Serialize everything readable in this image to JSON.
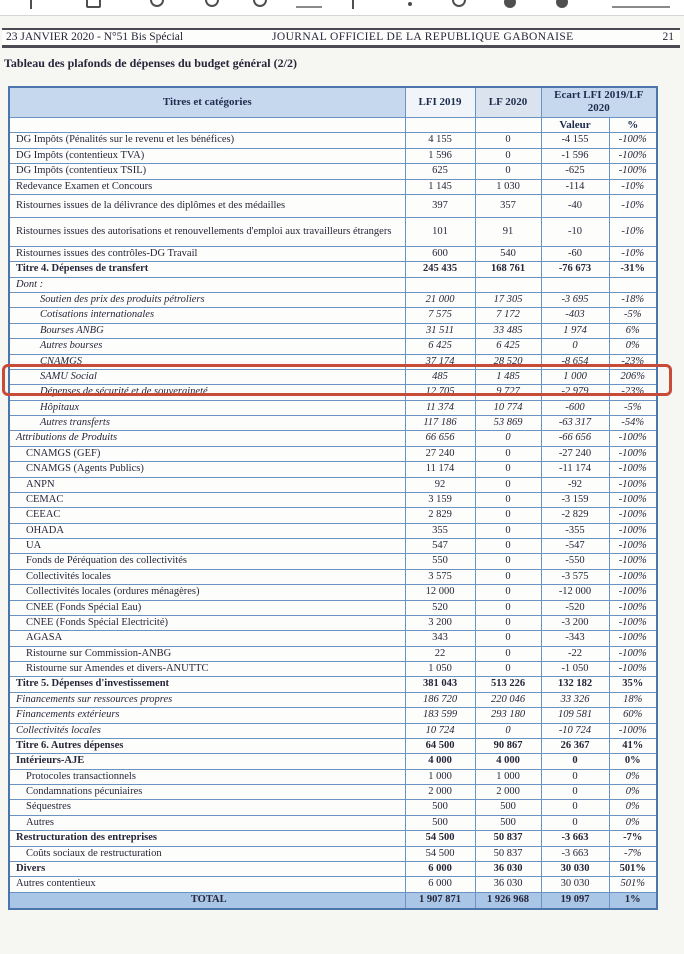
{
  "page": {
    "journal_header": {
      "date_issue": "23 JANVIER 2020 - N°51 Bis Spécial",
      "journal_name": "JOURNAL OFFICIEL DE LA REPUBLIQUE GABONAISE",
      "page_number": "21"
    },
    "document_title": "Tableau des plafonds de dépenses du budget général (2/2)"
  },
  "toolbar": {
    "note": "cropped browser toolbar, only bottom edges of icon glyphs visible"
  },
  "annotation": {
    "highlight_color": "#c84b3a",
    "highlighted_row": "SAMU Social"
  },
  "colors": {
    "table_border": "#6a92c3",
    "header_fill": "#c6d8ee",
    "total_row_fill": "#a9c6e6",
    "page_background": "#f6f6f2"
  },
  "table": {
    "header": {
      "col_titles": "Titres et catégories",
      "col_lfi2019": "LFI 2019",
      "col_lf2020": "LF 2020",
      "col_ecart": "Ecart LFI 2019/LF 2020",
      "sub_valeur": "Valeur",
      "sub_pct": "%"
    },
    "rows": [
      {
        "label": "DG Impôts (Pénalités sur le revenu et les bénéfices)",
        "v1": "4 155",
        "v2": "0",
        "v3": "-4 155",
        "pct": "-100%",
        "style": "n",
        "indent": 0
      },
      {
        "label": "DG Impôts (contentieux TVA)",
        "v1": "1 596",
        "v2": "0",
        "v3": "-1 596",
        "pct": "-100%",
        "style": "n",
        "indent": 0
      },
      {
        "label": "DG Impôts (contentieux TSIL)",
        "v1": "625",
        "v2": "0",
        "v3": "-625",
        "pct": "-100%",
        "style": "n",
        "indent": 0
      },
      {
        "label": "Redevance Examen et Concours",
        "v1": "1 145",
        "v2": "1 030",
        "v3": "-114",
        "pct": "-10%",
        "style": "n",
        "indent": 0
      },
      {
        "label": "Ristournes issues de la délivrance des diplômes et des médailles",
        "v1": "397",
        "v2": "357",
        "v3": "-40",
        "pct": "-10%",
        "style": "n",
        "indent": 0,
        "h": 24
      },
      {
        "label": "Ristournes issues des autorisations et renouvellements d'emploi aux travailleurs étrangers",
        "v1": "101",
        "v2": "91",
        "v3": "-10",
        "pct": "-10%",
        "style": "n",
        "indent": 0,
        "h": 30
      },
      {
        "label": "Ristournes issues des contrôles-DG Travail",
        "v1": "600",
        "v2": "540",
        "v3": "-60",
        "pct": "-10%",
        "style": "n",
        "indent": 0
      },
      {
        "label": "Titre 4. Dépenses de transfert",
        "v1": "245 435",
        "v2": "168 761",
        "v3": "-76 673",
        "pct": "-31%",
        "style": "b",
        "indent": 0
      },
      {
        "label": "Dont :",
        "v1": "",
        "v2": "",
        "v3": "",
        "pct": "",
        "style": "i",
        "indent": 0
      },
      {
        "label": "Soutien des prix des produits pétroliers",
        "v1": "21 000",
        "v2": "17 305",
        "v3": "-3 695",
        "pct": "-18%",
        "style": "i",
        "indent": 2
      },
      {
        "label": "Cotisations internationales",
        "v1": "7 575",
        "v2": "7 172",
        "v3": "-403",
        "pct": "-5%",
        "style": "i",
        "indent": 2
      },
      {
        "label": "Bourses ANBG",
        "v1": "31 511",
        "v2": "33 485",
        "v3": "1 974",
        "pct": "6%",
        "style": "i",
        "indent": 2
      },
      {
        "label": "Autres bourses",
        "v1": "6 425",
        "v2": "6 425",
        "v3": "0",
        "pct": "0%",
        "style": "i",
        "indent": 2
      },
      {
        "label": "CNAMGS",
        "v1": "37 174",
        "v2": "28 520",
        "v3": "-8 654",
        "pct": "-23%",
        "style": "i",
        "indent": 2
      },
      {
        "label": "SAMU Social",
        "v1": "485",
        "v2": "1 485",
        "v3": "1 000",
        "pct": "206%",
        "style": "i",
        "indent": 2,
        "highlight": true
      },
      {
        "label": "Dépenses de sécurité et de souveraineté",
        "v1": "12 705",
        "v2": "9 727",
        "v3": "-2 979",
        "pct": "-23%",
        "style": "i",
        "indent": 2
      },
      {
        "label": "Hôpitaux",
        "v1": "11 374",
        "v2": "10 774",
        "v3": "-600",
        "pct": "-5%",
        "style": "i",
        "indent": 2
      },
      {
        "label": "Autres transferts",
        "v1": "117 186",
        "v2": "53 869",
        "v3": "-63 317",
        "pct": "-54%",
        "style": "i",
        "indent": 2
      },
      {
        "label": "Attributions de Produits",
        "v1": "66 656",
        "v2": "0",
        "v3": "-66 656",
        "pct": "-100%",
        "style": "i",
        "indent": 0
      },
      {
        "label": "CNAMGS (GEF)",
        "v1": "27 240",
        "v2": "0",
        "v3": "-27 240",
        "pct": "-100%",
        "style": "n",
        "indent": 1
      },
      {
        "label": "CNAMGS (Agents Publics)",
        "v1": "11 174",
        "v2": "0",
        "v3": "-11 174",
        "pct": "-100%",
        "style": "n",
        "indent": 1
      },
      {
        "label": "ANPN",
        "v1": "92",
        "v2": "0",
        "v3": "-92",
        "pct": "-100%",
        "style": "n",
        "indent": 1
      },
      {
        "label": "CEMAC",
        "v1": "3 159",
        "v2": "0",
        "v3": "-3 159",
        "pct": "-100%",
        "style": "n",
        "indent": 1
      },
      {
        "label": "CEEAC",
        "v1": "2 829",
        "v2": "0",
        "v3": "-2 829",
        "pct": "-100%",
        "style": "n",
        "indent": 1
      },
      {
        "label": "OHADA",
        "v1": "355",
        "v2": "0",
        "v3": "-355",
        "pct": "-100%",
        "style": "n",
        "indent": 1
      },
      {
        "label": "UA",
        "v1": "547",
        "v2": "0",
        "v3": "-547",
        "pct": "-100%",
        "style": "n",
        "indent": 1
      },
      {
        "label": "Fonds de Péréquation des collectivités",
        "v1": "550",
        "v2": "0",
        "v3": "-550",
        "pct": "-100%",
        "style": "n",
        "indent": 1
      },
      {
        "label": "Collectivités locales",
        "v1": "3 575",
        "v2": "0",
        "v3": "-3 575",
        "pct": "-100%",
        "style": "n",
        "indent": 1
      },
      {
        "label": "Collectivités locales (ordures ménagères)",
        "v1": "12 000",
        "v2": "0",
        "v3": "-12 000",
        "pct": "-100%",
        "style": "n",
        "indent": 1
      },
      {
        "label": "CNEE (Fonds Spécial Eau)",
        "v1": "520",
        "v2": "0",
        "v3": "-520",
        "pct": "-100%",
        "style": "n",
        "indent": 1
      },
      {
        "label": "CNEE (Fonds Spécial Electricité)",
        "v1": "3 200",
        "v2": "0",
        "v3": "-3 200",
        "pct": "-100%",
        "style": "n",
        "indent": 1
      },
      {
        "label": "AGASA",
        "v1": "343",
        "v2": "0",
        "v3": "-343",
        "pct": "-100%",
        "style": "n",
        "indent": 1
      },
      {
        "label": "Ristourne sur Commission-ANBG",
        "v1": "22",
        "v2": "0",
        "v3": "-22",
        "pct": "-100%",
        "style": "n",
        "indent": 1
      },
      {
        "label": "Ristourne sur Amendes et divers-ANUTTC",
        "v1": "1 050",
        "v2": "0",
        "v3": "-1 050",
        "pct": "-100%",
        "style": "n",
        "indent": 1
      },
      {
        "label": "Titre 5. Dépenses d'investissement",
        "v1": "381 043",
        "v2": "513 226",
        "v3": "132 182",
        "pct": "35%",
        "style": "b",
        "indent": 0
      },
      {
        "label": "Financements sur ressources propres",
        "v1": "186 720",
        "v2": "220 046",
        "v3": "33 326",
        "pct": "18%",
        "style": "i",
        "indent": 0
      },
      {
        "label": "Financements extérieurs",
        "v1": "183 599",
        "v2": "293 180",
        "v3": "109 581",
        "pct": "60%",
        "style": "i",
        "indent": 0
      },
      {
        "label": "Collectivités locales",
        "v1": "10 724",
        "v2": "0",
        "v3": "-10 724",
        "pct": "-100%",
        "style": "i",
        "indent": 0
      },
      {
        "label": "Titre 6. Autres dépenses",
        "v1": "64 500",
        "v2": "90 867",
        "v3": "26 367",
        "pct": "41%",
        "style": "b",
        "indent": 0
      },
      {
        "label": "Intérieurs-AJE",
        "v1": "4 000",
        "v2": "4 000",
        "v3": "0",
        "pct": "0%",
        "style": "b",
        "indent": 0
      },
      {
        "label": "Protocoles transactionnels",
        "v1": "1 000",
        "v2": "1 000",
        "v3": "0",
        "pct": "0%",
        "style": "n",
        "indent": 1
      },
      {
        "label": "Condamnations pécuniaires",
        "v1": "2 000",
        "v2": "2 000",
        "v3": "0",
        "pct": "0%",
        "style": "n",
        "indent": 1
      },
      {
        "label": "Séquestres",
        "v1": "500",
        "v2": "500",
        "v3": "0",
        "pct": "0%",
        "style": "n",
        "indent": 1
      },
      {
        "label": "Autres",
        "v1": "500",
        "v2": "500",
        "v3": "0",
        "pct": "0%",
        "style": "n",
        "indent": 1
      },
      {
        "label": "Restructuration des entreprises",
        "v1": "54 500",
        "v2": "50 837",
        "v3": "-3 663",
        "pct": "-7%",
        "style": "b",
        "indent": 0
      },
      {
        "label": "Coûts sociaux de restructuration",
        "v1": "54 500",
        "v2": "50 837",
        "v3": "-3 663",
        "pct": "-7%",
        "style": "n",
        "indent": 1
      },
      {
        "label": "Divers",
        "v1": "6 000",
        "v2": "36 030",
        "v3": "30 030",
        "pct": "501%",
        "style": "b",
        "indent": 0
      },
      {
        "label": "Autres contentieux",
        "v1": "6 000",
        "v2": "36 030",
        "v3": "30 030",
        "pct": "501%",
        "style": "n",
        "indent": 0
      },
      {
        "label": "TOTAL",
        "v1": "1 907 871",
        "v2": "1 926 968",
        "v3": "19 097",
        "pct": "1%",
        "style": "t",
        "indent": 0
      }
    ]
  }
}
